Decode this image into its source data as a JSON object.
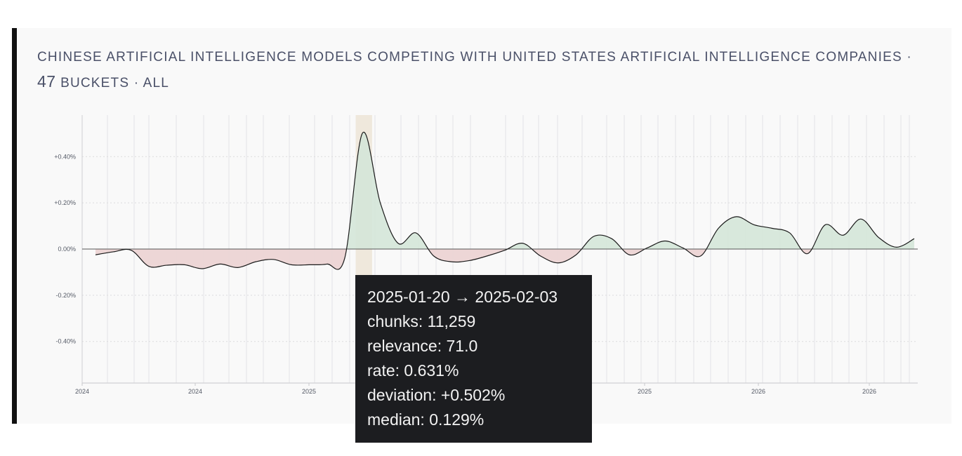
{
  "header": {
    "topic": "Chinese artificial intelligence models competing with United States artificial intelligence companies",
    "separator": "·",
    "bucket_count": "47",
    "bucket_label": "buckets",
    "scope": "all"
  },
  "tooltip": {
    "range": "2025-01-20 → 2025-02-03",
    "chunks": "chunks: 11,259",
    "relevance": "relevance: 71.0",
    "rate": "rate: 0.631%",
    "deviation": "deviation: +0.502%",
    "median": "median: 0.129%"
  },
  "chart_data": {
    "type": "area",
    "y_unit": "percentage-point deviation from median",
    "ylim": [
      -0.58,
      0.58
    ],
    "y_ticks": [
      0.4,
      0.2,
      0.0,
      -0.2,
      -0.4
    ],
    "y_tick_labels": [
      "+0.40%",
      "+0.20%",
      "0.00%",
      "-0.20%",
      "-0.40%"
    ],
    "x_tick_labels": [
      "2024",
      "2024",
      "2025",
      "2025",
      "2025",
      "2025",
      "2026",
      "2026"
    ],
    "x_tick_labels_visible": [
      "2024",
      "2024",
      "2025",
      "2025",
      "2026",
      "2026"
    ],
    "highlighted_bucket": "2025-01-20 → 2025-02-03",
    "grid": true,
    "positive_color": "#d4e6d8",
    "negative_color": "#ecd4d4",
    "highlight_color": "#efe8dc",
    "series": [
      {
        "values": [
          -0.025,
          -0.012,
          -0.005,
          -0.075,
          -0.07,
          -0.068,
          -0.085,
          -0.065,
          -0.08,
          -0.055,
          -0.045,
          -0.068,
          -0.068,
          -0.065,
          -0.04,
          0.502,
          0.2,
          0.025,
          0.07,
          -0.03,
          -0.055,
          -0.05,
          -0.03,
          -0.005,
          0.025,
          -0.03,
          -0.06,
          -0.025,
          0.055,
          0.045,
          -0.025,
          0.005,
          0.035,
          0.005,
          -0.03,
          0.09,
          0.14,
          0.105,
          0.09,
          0.07,
          -0.02,
          0.105,
          0.06,
          0.13,
          0.05,
          0.008,
          0.045
        ]
      }
    ]
  }
}
